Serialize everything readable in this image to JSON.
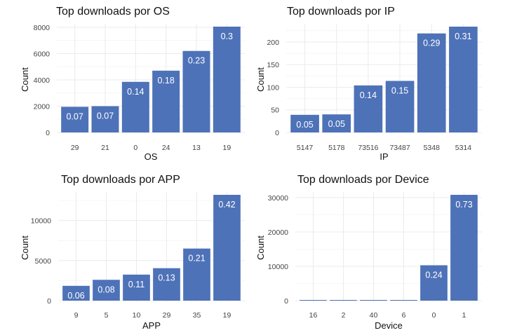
{
  "bar_color": "#4e72b8",
  "chart_data": [
    {
      "type": "bar",
      "title": "Top downloads por OS",
      "xlabel": "OS",
      "ylabel": "Count",
      "categories": [
        "29",
        "21",
        "0",
        "24",
        "13",
        "19"
      ],
      "values": [
        1950,
        2000,
        3850,
        4700,
        6200,
        8050
      ],
      "data_labels": [
        "0.07",
        "0.07",
        "0.14",
        "0.18",
        "0.23",
        "0.3"
      ],
      "yticks": [
        0,
        2000,
        4000,
        6000,
        8000
      ],
      "ylim": [
        0,
        8050
      ],
      "grid": true
    },
    {
      "type": "bar",
      "title": "Top downloads por IP",
      "xlabel": "IP",
      "ylabel": "Count",
      "categories": [
        "5147",
        "5178",
        "73516",
        "73487",
        "5348",
        "5314"
      ],
      "values": [
        39,
        40,
        104,
        114,
        219,
        234
      ],
      "data_labels": [
        "0.05",
        "0.05",
        "0.14",
        "0.15",
        "0.29",
        "0.31"
      ],
      "yticks": [
        0,
        50,
        100,
        150,
        200
      ],
      "ylim": [
        0,
        234
      ],
      "grid": true
    },
    {
      "type": "bar",
      "title": "Top downloads por APP",
      "xlabel": "APP",
      "ylabel": "Count",
      "categories": [
        "9",
        "5",
        "10",
        "29",
        "35",
        "19"
      ],
      "values": [
        1850,
        2600,
        3250,
        4050,
        6500,
        13200
      ],
      "data_labels": [
        "0.06",
        "0.08",
        "0.11",
        "0.13",
        "0.21",
        "0.42"
      ],
      "yticks": [
        0,
        5000,
        10000
      ],
      "ylim": [
        0,
        13200
      ],
      "grid": true
    },
    {
      "type": "bar",
      "title": "Top downloads por Device",
      "xlabel": "Device",
      "ylabel": "Count",
      "categories": [
        "16",
        "2",
        "40",
        "6",
        "0",
        "1"
      ],
      "values": [
        60,
        60,
        60,
        60,
        10300,
        30800
      ],
      "data_labels": [
        "",
        "",
        "",
        "",
        "0.24",
        "0.73"
      ],
      "yticks": [
        0,
        10000,
        20000,
        30000
      ],
      "ylim": [
        0,
        30800
      ],
      "grid": true
    }
  ]
}
